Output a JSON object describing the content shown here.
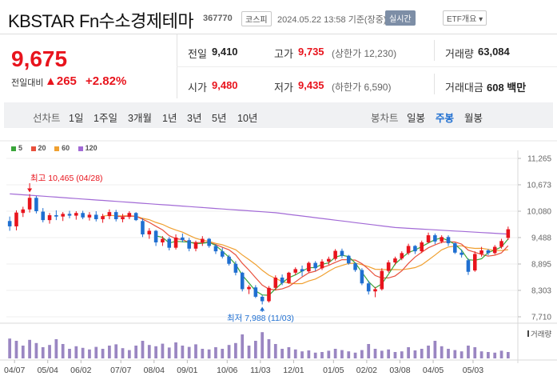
{
  "header": {
    "title": "KBSTAR Fn수소경제테마",
    "code": "367770",
    "market": "코스피",
    "datetime": "2024.05.22 13:58 기준(장중)",
    "live_label": "실시간",
    "etf_label": "ETF개요 ▾"
  },
  "quote": {
    "price": "9,675",
    "change_label": "전일대비",
    "change_value": "▲265",
    "change_pct": "+2.82%",
    "prev_label": "전일",
    "prev_value": "9,410",
    "open_label": "시가",
    "open_value": "9,480",
    "high_label": "고가",
    "high_value": "9,735",
    "upper_limit": "(상한가 12,230)",
    "low_label": "저가",
    "low_value": "9,435",
    "lower_limit": "(하한가 6,590)",
    "volume_label": "거래량",
    "volume_value": "63,084",
    "amount_label": "거래대금",
    "amount_value": "608 백만"
  },
  "periods": {
    "line_label": "선차트",
    "line_items": [
      "1일",
      "1주일",
      "3개월",
      "1년",
      "3년",
      "5년",
      "10년"
    ],
    "candle_label": "봉차트",
    "candle_items": [
      "일봉",
      "주봉",
      "월봉"
    ],
    "active": "주봉"
  },
  "colors": {
    "up": "#e8141d",
    "down": "#1f6fd1",
    "ma5": "#3aa53a",
    "ma20": "#e8503c",
    "ma60": "#f0a030",
    "ma120": "#a26ad6",
    "volume": "#9a86c2"
  },
  "chart_data": {
    "type": "candlestick",
    "legend": [
      "5",
      "20",
      "60",
      "120"
    ],
    "x_ticks": [
      "04/07",
      "05/04",
      "06/02",
      "07/07",
      "08/04",
      "09/01",
      "10/06",
      "11/03",
      "12/01",
      "01/05",
      "02/02",
      "03/08",
      "04/05",
      "05/03"
    ],
    "y_ticks": [
      11265,
      10673,
      10080,
      9488,
      8895,
      8303,
      7710
    ],
    "ylim": [
      7710,
      11265
    ],
    "annotations": {
      "high": "최고 10,465 (04/28)",
      "low": "최저 7,988 (11/03)"
    },
    "volume_label": "거래량",
    "candles": [
      [
        9860,
        9960,
        9640,
        9740
      ],
      [
        9740,
        10100,
        9650,
        10050
      ],
      [
        10040,
        10180,
        9950,
        10120
      ],
      [
        10120,
        10465,
        10050,
        10380
      ],
      [
        10380,
        10420,
        10030,
        10080
      ],
      [
        10070,
        10150,
        9830,
        9880
      ],
      [
        9880,
        10040,
        9800,
        9990
      ],
      [
        9990,
        10100,
        9880,
        9960
      ],
      [
        9960,
        10060,
        9860,
        10020
      ],
      [
        10020,
        10090,
        9920,
        9980
      ],
      [
        9980,
        10080,
        9890,
        10040
      ],
      [
        10040,
        10090,
        9900,
        9940
      ],
      [
        9940,
        10060,
        9870,
        10000
      ],
      [
        10000,
        10080,
        9850,
        9900
      ],
      [
        9900,
        10020,
        9820,
        9970
      ],
      [
        9970,
        10120,
        9900,
        10060
      ],
      [
        10060,
        10110,
        9850,
        9900
      ],
      [
        9900,
        10020,
        9830,
        9950
      ],
      [
        9950,
        10080,
        9900,
        10040
      ],
      [
        10040,
        10060,
        9860,
        9880
      ],
      [
        9860,
        9920,
        9500,
        9560
      ],
      [
        9560,
        9700,
        9460,
        9640
      ],
      [
        9640,
        9660,
        9300,
        9380
      ],
      [
        9380,
        9520,
        9300,
        9460
      ],
      [
        9460,
        9500,
        9200,
        9260
      ],
      [
        9260,
        9560,
        9220,
        9490
      ],
      [
        9490,
        9580,
        9380,
        9430
      ],
      [
        9430,
        9480,
        9180,
        9240
      ],
      [
        9240,
        9420,
        9180,
        9380
      ],
      [
        9380,
        9520,
        9300,
        9460
      ],
      [
        9460,
        9480,
        9260,
        9300
      ],
      [
        9300,
        9340,
        9120,
        9180
      ],
      [
        9180,
        9260,
        9020,
        9060
      ],
      [
        9060,
        9100,
        8860,
        8900
      ],
      [
        8900,
        8960,
        8640,
        8700
      ],
      [
        8700,
        8720,
        8280,
        8330
      ],
      [
        8330,
        8420,
        8220,
        8380
      ],
      [
        8370,
        8420,
        8130,
        8160
      ],
      [
        8160,
        8200,
        7988,
        8060
      ],
      [
        8060,
        8400,
        8030,
        8360
      ],
      [
        8360,
        8640,
        8300,
        8590
      ],
      [
        8590,
        8660,
        8420,
        8470
      ],
      [
        8470,
        8720,
        8450,
        8700
      ],
      [
        8700,
        8820,
        8650,
        8780
      ],
      [
        8780,
        8860,
        8620,
        8730
      ],
      [
        8730,
        8950,
        8700,
        8920
      ],
      [
        8920,
        8960,
        8740,
        8800
      ],
      [
        8800,
        9000,
        8760,
        8950
      ],
      [
        8950,
        9060,
        8880,
        9010
      ],
      [
        9010,
        9230,
        8970,
        9190
      ],
      [
        9190,
        9240,
        9030,
        9080
      ],
      [
        9080,
        9100,
        8880,
        8910
      ],
      [
        8910,
        8930,
        8720,
        8760
      ],
      [
        8760,
        8800,
        8420,
        8460
      ],
      [
        8460,
        8520,
        8210,
        8280
      ],
      [
        8280,
        8380,
        8150,
        8330
      ],
      [
        8330,
        8800,
        8300,
        8740
      ],
      [
        8740,
        8980,
        8700,
        8930
      ],
      [
        8930,
        9060,
        8870,
        9020
      ],
      [
        9020,
        9180,
        8980,
        9140
      ],
      [
        9140,
        9350,
        9100,
        9300
      ],
      [
        9300,
        9320,
        9120,
        9180
      ],
      [
        9180,
        9420,
        9140,
        9380
      ],
      [
        9380,
        9600,
        9360,
        9540
      ],
      [
        9540,
        9580,
        9340,
        9400
      ],
      [
        9400,
        9540,
        9360,
        9500
      ],
      [
        9500,
        9540,
        9300,
        9360
      ],
      [
        9360,
        9380,
        9120,
        9150
      ],
      [
        9150,
        9220,
        9040,
        9100
      ],
      [
        8980,
        9020,
        8650,
        8720
      ],
      [
        8750,
        9180,
        8720,
        9120
      ],
      [
        9120,
        9280,
        9060,
        9200
      ],
      [
        9200,
        9230,
        9090,
        9140
      ],
      [
        9140,
        9320,
        9110,
        9280
      ],
      [
        9280,
        9460,
        9240,
        9410
      ],
      [
        9480,
        9735,
        9435,
        9675
      ]
    ],
    "volumes": [
      0.62,
      0.55,
      0.4,
      0.58,
      0.48,
      0.35,
      0.42,
      0.6,
      0.45,
      0.3,
      0.38,
      0.33,
      0.28,
      0.36,
      0.3,
      0.4,
      0.44,
      0.32,
      0.26,
      0.4,
      0.55,
      0.42,
      0.38,
      0.46,
      0.34,
      0.5,
      0.4,
      0.36,
      0.44,
      0.3,
      0.28,
      0.35,
      0.3,
      0.42,
      0.48,
      0.75,
      0.4,
      0.55,
      0.82,
      0.6,
      0.45,
      0.3,
      0.35,
      0.28,
      0.22,
      0.25,
      0.18,
      0.2,
      0.24,
      0.3,
      0.26,
      0.22,
      0.18,
      0.26,
      0.45,
      0.3,
      0.24,
      0.28,
      0.2,
      0.22,
      0.35,
      0.25,
      0.3,
      0.4,
      0.55,
      0.38,
      0.3,
      0.26,
      0.22,
      0.4,
      0.35,
      0.22,
      0.2,
      0.18,
      0.24,
      0.2
    ]
  }
}
